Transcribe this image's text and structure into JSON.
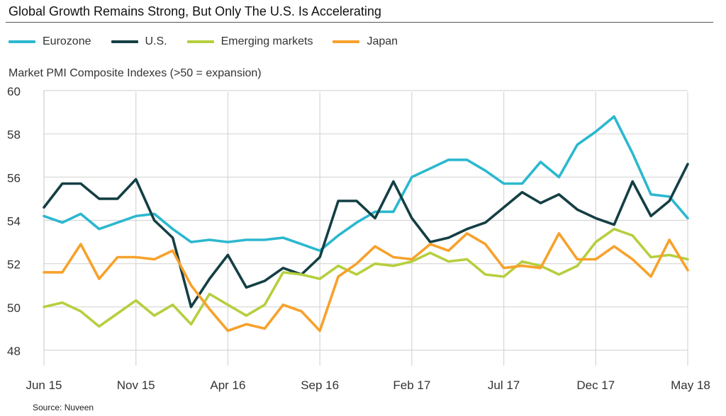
{
  "title": "Global Growth Remains Strong, But Only The U.S. Is Accelerating",
  "source": "Source: Nuveen",
  "chart_data": {
    "type": "line",
    "title": "Global Growth Remains Strong, But Only The U.S. Is Accelerating",
    "ylabel": "Market PMI Composite Indexes (>50 = expansion)",
    "ylim": [
      48,
      60
    ],
    "yticks": [
      48,
      50,
      52,
      54,
      56,
      58,
      60
    ],
    "grid": true,
    "legend_position": "top-left",
    "x": [
      "Jun 15",
      "Jul 15",
      "Aug 15",
      "Sep 15",
      "Oct 15",
      "Nov 15",
      "Dec 15",
      "Jan 16",
      "Feb 16",
      "Mar 16",
      "Apr 16",
      "May 16",
      "Jun 16",
      "Jul 16",
      "Aug 16",
      "Sep 16",
      "Oct 16",
      "Nov 16",
      "Dec 16",
      "Jan 17",
      "Feb 17",
      "Mar 17",
      "Apr 17",
      "May 17",
      "Jun 17",
      "Jul 17",
      "Aug 17",
      "Sep 17",
      "Oct 17",
      "Nov 17",
      "Dec 17",
      "Jan 18",
      "Feb 18",
      "Mar 18",
      "Apr 18",
      "May 18"
    ],
    "xtick_labels": [
      {
        "index": 0,
        "label": "Jun 15"
      },
      {
        "index": 5,
        "label": "Nov 15"
      },
      {
        "index": 10,
        "label": "Apr 16"
      },
      {
        "index": 15,
        "label": "Sep 16"
      },
      {
        "index": 20,
        "label": "Feb 17"
      },
      {
        "index": 25,
        "label": "Jul 17"
      },
      {
        "index": 30,
        "label": "Dec 17"
      },
      {
        "index": 35,
        "label": "May 18"
      }
    ],
    "series": [
      {
        "name": "Eurozone",
        "color": "#2bb8cf",
        "values": [
          54.2,
          53.9,
          54.3,
          53.6,
          53.9,
          54.2,
          54.3,
          53.6,
          53.0,
          53.1,
          53.0,
          53.1,
          53.1,
          53.2,
          52.9,
          52.6,
          53.3,
          53.9,
          54.4,
          54.4,
          56.0,
          56.4,
          56.8,
          56.8,
          56.3,
          55.7,
          55.7,
          56.7,
          56.0,
          57.5,
          58.1,
          58.8,
          57.1,
          55.2,
          55.1,
          54.1
        ]
      },
      {
        "name": "U.S.",
        "color": "#143f44",
        "values": [
          54.6,
          55.7,
          55.7,
          55.0,
          55.0,
          55.9,
          54.0,
          53.2,
          50.0,
          51.3,
          52.4,
          50.9,
          51.2,
          51.8,
          51.5,
          52.3,
          54.9,
          54.9,
          54.1,
          55.8,
          54.1,
          53.0,
          53.2,
          53.6,
          53.9,
          54.6,
          55.3,
          54.8,
          55.2,
          54.5,
          54.1,
          53.8,
          55.8,
          54.2,
          54.9,
          56.6
        ]
      },
      {
        "name": "Emerging markets",
        "color": "#b5cf3e",
        "values": [
          50.0,
          50.2,
          49.8,
          49.1,
          49.7,
          50.3,
          49.6,
          50.1,
          49.2,
          50.6,
          50.1,
          49.6,
          50.1,
          51.6,
          51.5,
          51.3,
          51.9,
          51.5,
          52.0,
          51.9,
          52.1,
          52.5,
          52.1,
          52.2,
          51.5,
          51.4,
          52.1,
          51.9,
          51.5,
          51.9,
          53.0,
          53.6,
          53.3,
          52.3,
          52.4,
          52.2
        ]
      },
      {
        "name": "Japan",
        "color": "#f7a12b",
        "values": [
          51.6,
          51.6,
          52.9,
          51.3,
          52.3,
          52.3,
          52.2,
          52.6,
          51.0,
          49.9,
          48.9,
          49.2,
          49.0,
          50.1,
          49.8,
          48.9,
          51.4,
          52.0,
          52.8,
          52.3,
          52.2,
          52.9,
          52.6,
          53.4,
          52.9,
          51.8,
          51.9,
          51.8,
          53.4,
          52.2,
          52.2,
          52.8,
          52.2,
          51.4,
          53.1,
          51.7
        ]
      }
    ]
  }
}
